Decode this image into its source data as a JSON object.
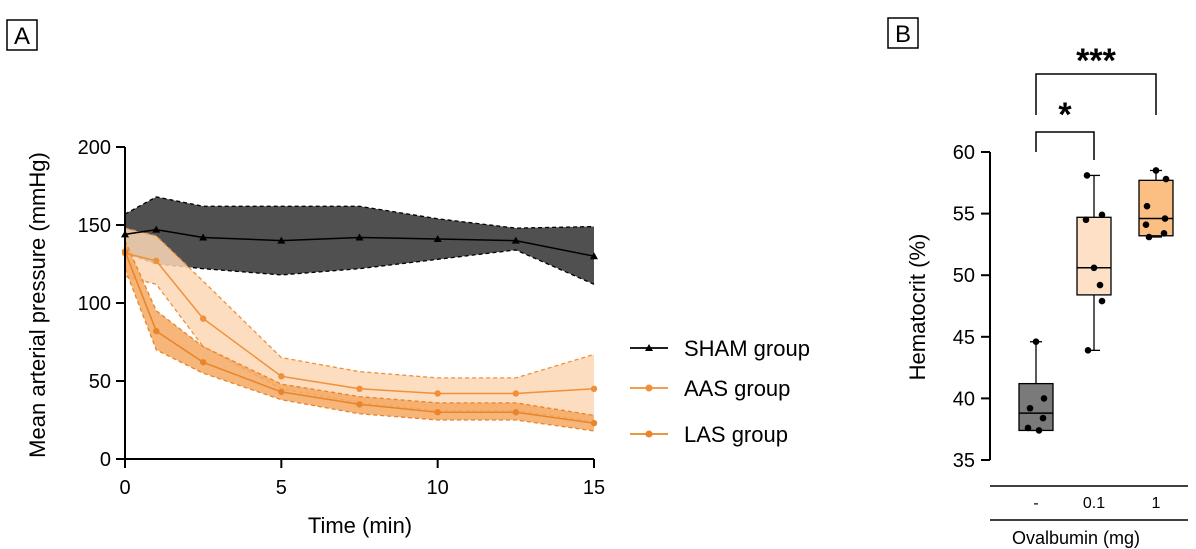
{
  "colors": {
    "sham": "#000000",
    "sham_band": "#505050",
    "aas": "#f0903a",
    "aas_band": "#fbd7b4",
    "las": "#e8852c",
    "las_band": "#f4a862",
    "box_sham": "#7a7a7a",
    "box_low": "#fde0c6",
    "box_high": "#fbbf84"
  },
  "chart_data": [
    {
      "panel": "A",
      "type": "line",
      "xlabel": "Time (min)",
      "ylabel": "Mean arterial pressure (mmHg)",
      "xlim": [
        0,
        15
      ],
      "ylim": [
        0,
        200
      ],
      "xticks": [
        "0",
        "5",
        "10",
        "15"
      ],
      "yticks": [
        "0",
        "50",
        "100",
        "150",
        "200"
      ],
      "grid": false,
      "legend_position": "right",
      "series": [
        {
          "name": "SHAM group",
          "marker": "triangle",
          "x": [
            0,
            1,
            2.5,
            5,
            7.5,
            10,
            12.5,
            15
          ],
          "y": [
            144,
            147,
            142,
            140,
            142,
            141,
            140,
            130
          ],
          "upper": [
            157,
            168,
            162,
            162,
            162,
            154,
            148,
            149
          ],
          "lower": [
            132,
            125,
            122,
            118,
            122,
            128,
            134,
            112
          ]
        },
        {
          "name": "AAS group",
          "marker": "circle",
          "x": [
            0,
            1,
            2.5,
            5,
            7.5,
            10,
            12.5,
            15
          ],
          "y": [
            132,
            127,
            90,
            53,
            45,
            42,
            42,
            45
          ],
          "upper": [
            148,
            143,
            114,
            65,
            56,
            52,
            52,
            67
          ],
          "lower": [
            117,
            112,
            72,
            45,
            36,
            31,
            31,
            24
          ]
        },
        {
          "name": "LAS group",
          "marker": "circle",
          "x": [
            0,
            1,
            2.5,
            5,
            7.5,
            10,
            12.5,
            15
          ],
          "y": [
            133,
            82,
            62,
            43,
            35,
            30,
            30,
            23
          ],
          "upper": [
            140,
            95,
            72,
            48,
            40,
            36,
            36,
            28
          ],
          "lower": [
            122,
            70,
            55,
            38,
            29,
            25,
            25,
            18
          ]
        }
      ]
    },
    {
      "panel": "B",
      "type": "box",
      "ylabel": "Hematocrit (%)",
      "ylim": [
        35,
        60
      ],
      "yticks": [
        "35",
        "40",
        "45",
        "50",
        "55",
        "60"
      ],
      "xlabel": "Ovalbumin (mg)",
      "categories": [
        "-",
        "0.1",
        "1"
      ],
      "boxes": [
        {
          "min": 37.4,
          "q1": 37.4,
          "median": 38.8,
          "q3": 41.2,
          "max": 44.6,
          "points": [
            44.6,
            40.0,
            39.2,
            38.4,
            37.6,
            37.4
          ]
        },
        {
          "min": 43.9,
          "q1": 48.4,
          "median": 50.6,
          "q3": 54.7,
          "max": 58.1,
          "points": [
            58.1,
            54.9,
            54.5,
            50.6,
            49.2,
            47.9,
            43.9
          ]
        },
        {
          "min": 53.1,
          "q1": 53.2,
          "median": 54.6,
          "q3": 57.7,
          "max": 58.5,
          "points": [
            58.5,
            57.8,
            55.6,
            54.6,
            54.1,
            53.4,
            53.1
          ]
        }
      ],
      "significance": [
        {
          "from": 0,
          "to": 1,
          "label": "*"
        },
        {
          "from": 0,
          "to": 2,
          "label": "***"
        }
      ]
    }
  ],
  "panel_labels": {
    "a": "A",
    "b": "B"
  }
}
